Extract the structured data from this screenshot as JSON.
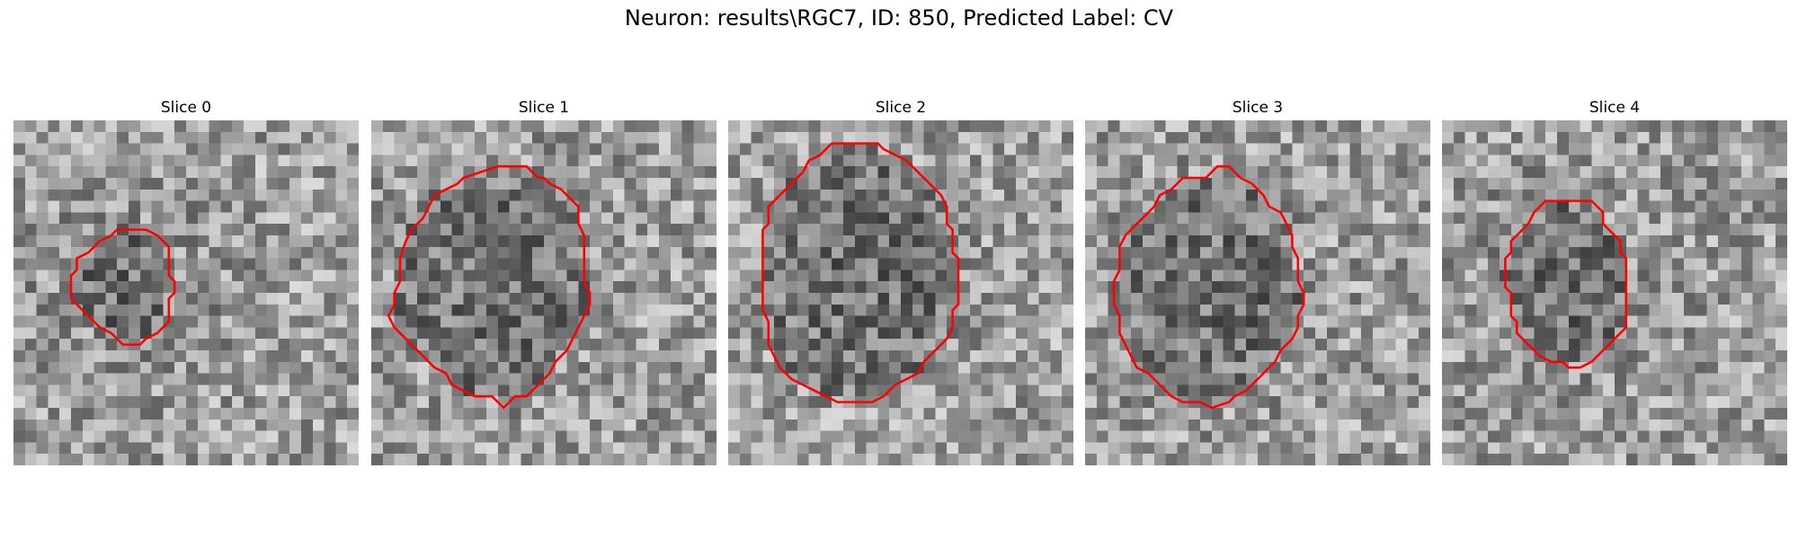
{
  "figure": {
    "title": "Neuron: results\\RGC7, ID: 850, Predicted Label: CV"
  },
  "panels": [
    {
      "title": "Slice 0",
      "contour": [
        [
          10,
          9.5
        ],
        [
          11.5,
          9.5
        ],
        [
          12.5,
          10
        ],
        [
          13.5,
          11
        ],
        [
          13.5,
          13.5
        ],
        [
          14,
          14
        ],
        [
          14,
          15
        ],
        [
          13.5,
          15.5
        ],
        [
          13.5,
          17.5
        ],
        [
          13,
          18
        ],
        [
          12.5,
          18.5
        ],
        [
          11.5,
          19
        ],
        [
          11,
          19.5
        ],
        [
          9.5,
          19.5
        ],
        [
          8.5,
          18.5
        ],
        [
          7.5,
          18
        ],
        [
          7,
          17.5
        ],
        [
          6.5,
          17
        ],
        [
          5.5,
          16
        ],
        [
          5,
          15.5
        ],
        [
          5,
          13.5
        ],
        [
          5.5,
          13
        ],
        [
          5.5,
          12
        ],
        [
          6.5,
          11.5
        ],
        [
          7,
          11
        ],
        [
          7.5,
          10.5
        ],
        [
          8.5,
          10
        ],
        [
          9,
          9.5
        ]
      ]
    },
    {
      "title": "Slice 1",
      "contour": [
        [
          12.5,
          4
        ],
        [
          13.5,
          4
        ],
        [
          14.5,
          5
        ],
        [
          15,
          5
        ],
        [
          15.5,
          5.5
        ],
        [
          16.5,
          6
        ],
        [
          17,
          6.5
        ],
        [
          17.5,
          7
        ],
        [
          18,
          7.5
        ],
        [
          18,
          9
        ],
        [
          18.5,
          10
        ],
        [
          18.5,
          12
        ],
        [
          18.5,
          14
        ],
        [
          19,
          15
        ],
        [
          19,
          16
        ],
        [
          18.5,
          17
        ],
        [
          18,
          18
        ],
        [
          17.5,
          19
        ],
        [
          17,
          20
        ],
        [
          16,
          21
        ],
        [
          15.5,
          22
        ],
        [
          14.5,
          23
        ],
        [
          13.5,
          24
        ],
        [
          12.5,
          24
        ],
        [
          11.5,
          25
        ],
        [
          10.5,
          24
        ],
        [
          9,
          24
        ],
        [
          8,
          23.5
        ],
        [
          7,
          23
        ],
        [
          6.5,
          22
        ],
        [
          5.5,
          21.5
        ],
        [
          5,
          21
        ],
        [
          4,
          20
        ],
        [
          3,
          19
        ],
        [
          2,
          18
        ],
        [
          1.5,
          17
        ],
        [
          2,
          16
        ],
        [
          2,
          15
        ],
        [
          2.5,
          14
        ],
        [
          2.5,
          12
        ],
        [
          3,
          10.5
        ],
        [
          3.5,
          9.5
        ],
        [
          4.5,
          8.5
        ],
        [
          5,
          7.5
        ],
        [
          5.5,
          6.5
        ],
        [
          6.5,
          6
        ],
        [
          7.5,
          5.5
        ],
        [
          8,
          5
        ],
        [
          9.5,
          4.5
        ],
        [
          11,
          4
        ]
      ]
    },
    {
      "title": "Slice 2",
      "contour": [
        [
          9,
          2
        ],
        [
          13,
          2
        ],
        [
          13.5,
          2.5
        ],
        [
          14.5,
          3
        ],
        [
          15.5,
          3.5
        ],
        [
          16.5,
          4.5
        ],
        [
          17.5,
          5.5
        ],
        [
          18.5,
          6.5
        ],
        [
          19,
          7.5
        ],
        [
          19,
          9
        ],
        [
          19.5,
          9.5
        ],
        [
          19.5,
          11.5
        ],
        [
          20,
          12
        ],
        [
          20,
          16
        ],
        [
          19.5,
          16.5
        ],
        [
          19.5,
          18
        ],
        [
          19,
          19
        ],
        [
          18,
          20
        ],
        [
          17,
          21
        ],
        [
          16.5,
          22
        ],
        [
          15.5,
          22.5
        ],
        [
          14.5,
          23
        ],
        [
          13.5,
          24
        ],
        [
          12.5,
          24.5
        ],
        [
          9.5,
          24.5
        ],
        [
          8.5,
          24
        ],
        [
          7.5,
          23.5
        ],
        [
          6.5,
          23
        ],
        [
          5.5,
          22.5
        ],
        [
          4.5,
          21.5
        ],
        [
          4,
          20.5
        ],
        [
          3.5,
          19.5
        ],
        [
          3.5,
          17.5
        ],
        [
          3,
          16.5
        ],
        [
          3,
          9.5
        ],
        [
          3.5,
          9
        ],
        [
          3.5,
          7.5
        ],
        [
          4.5,
          6.5
        ],
        [
          5.5,
          5.5
        ],
        [
          6.5,
          4.5
        ],
        [
          7,
          3.5
        ],
        [
          8,
          3
        ],
        [
          8.5,
          2.5
        ]
      ]
    },
    {
      "title": "Slice 3",
      "contour": [
        [
          11.5,
          4
        ],
        [
          12.5,
          4
        ],
        [
          13.5,
          5
        ],
        [
          14.5,
          5.5
        ],
        [
          15.5,
          6.5
        ],
        [
          16,
          7.5
        ],
        [
          17,
          8
        ],
        [
          17.5,
          9
        ],
        [
          18,
          10
        ],
        [
          18,
          11
        ],
        [
          18.5,
          12
        ],
        [
          18.5,
          14
        ],
        [
          19,
          15
        ],
        [
          19,
          16
        ],
        [
          18.5,
          17
        ],
        [
          18.5,
          18
        ],
        [
          18,
          19
        ],
        [
          17,
          20
        ],
        [
          16.5,
          21
        ],
        [
          15.5,
          22
        ],
        [
          14.5,
          23
        ],
        [
          14,
          23.5
        ],
        [
          13,
          24
        ],
        [
          12.5,
          24.5
        ],
        [
          11,
          25
        ],
        [
          10,
          24.5
        ],
        [
          8.5,
          24.5
        ],
        [
          7.5,
          24
        ],
        [
          6.5,
          23
        ],
        [
          5.5,
          22
        ],
        [
          4.5,
          21.5
        ],
        [
          4,
          20.5
        ],
        [
          3.5,
          19.5
        ],
        [
          3,
          18.5
        ],
        [
          3,
          17
        ],
        [
          2.5,
          16
        ],
        [
          2.5,
          14
        ],
        [
          3,
          13
        ],
        [
          3,
          11
        ],
        [
          3.5,
          10
        ],
        [
          4.5,
          9
        ],
        [
          5,
          8.5
        ],
        [
          6,
          7.5
        ],
        [
          6.5,
          6.5
        ],
        [
          7.5,
          6
        ],
        [
          8,
          5.5
        ],
        [
          8.5,
          5
        ],
        [
          10.5,
          5
        ]
      ]
    },
    {
      "title": "Slice 4",
      "contour": [
        [
          9,
          7
        ],
        [
          13,
          7
        ],
        [
          13.5,
          7.5
        ],
        [
          14,
          8
        ],
        [
          14,
          9
        ],
        [
          14.5,
          9.5
        ],
        [
          15,
          10
        ],
        [
          15.5,
          10.5
        ],
        [
          15.5,
          11.5
        ],
        [
          16,
          12
        ],
        [
          16,
          18
        ],
        [
          15.5,
          18.5
        ],
        [
          15,
          19
        ],
        [
          14.5,
          19.5
        ],
        [
          14,
          20
        ],
        [
          13.5,
          20.5
        ],
        [
          13,
          21
        ],
        [
          12,
          21.5
        ],
        [
          11,
          21.5
        ],
        [
          10.5,
          21
        ],
        [
          9.5,
          21
        ],
        [
          8.5,
          20.5
        ],
        [
          8,
          20
        ],
        [
          7.5,
          19.5
        ],
        [
          7,
          19
        ],
        [
          6.5,
          18.5
        ],
        [
          6.5,
          17.5
        ],
        [
          6,
          17
        ],
        [
          6,
          15
        ],
        [
          5.5,
          14.5
        ],
        [
          5.5,
          12
        ],
        [
          6,
          11.5
        ],
        [
          6,
          10.5
        ],
        [
          6.5,
          10
        ],
        [
          7,
          9.5
        ],
        [
          7.5,
          9
        ],
        [
          8,
          8
        ],
        [
          8.5,
          7.5
        ]
      ]
    }
  ]
}
